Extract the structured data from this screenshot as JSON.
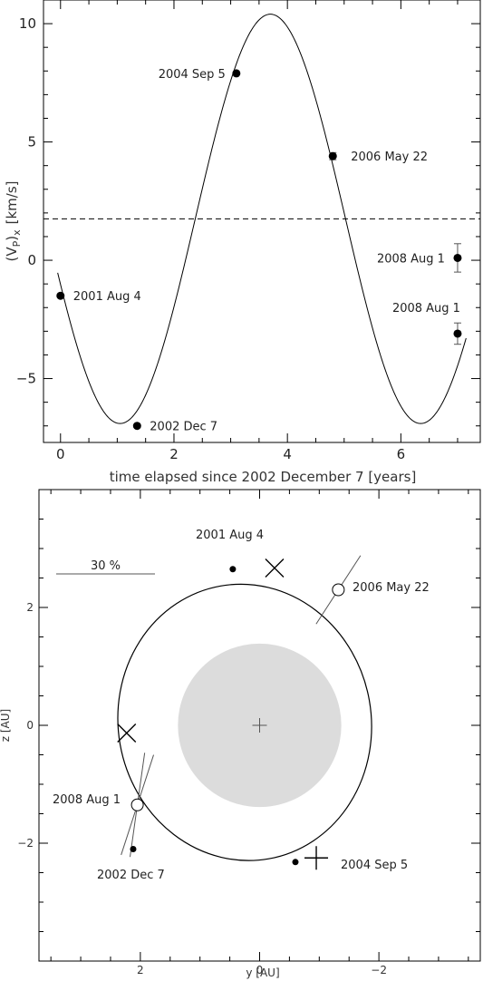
{
  "chart_data": [
    {
      "type": "line",
      "xlabel": "time elapsed since 2002 December 7 [years]",
      "ylabel_main": "(V",
      "ylabel_sub_p": "P",
      "ylabel_mid": ")",
      "ylabel_sub_x": "x",
      "ylabel_unit": "[km/s]",
      "xlim": [
        -0.3,
        7.4
      ],
      "ylim": [
        -7.7,
        11.0
      ],
      "x_ticks": [
        0,
        2,
        4,
        6
      ],
      "y_ticks": [
        -5,
        0,
        5,
        10
      ],
      "x_tick_labels": [
        "0",
        "2",
        "4",
        "6"
      ],
      "y_tick_labels": [
        "−5",
        "0",
        "5",
        "10"
      ],
      "mean_velocity": 1.75,
      "curve": {
        "offset": 1.75,
        "amplitude": 8.65,
        "period_years": 5.3,
        "phase_max_year": 3.7
      },
      "points": [
        {
          "label": "2001 Aug 4",
          "x": 0.0,
          "y": -1.5,
          "err": 0
        },
        {
          "label": "2002 Dec 7",
          "x": 1.35,
          "y": -7.0,
          "err": 0
        },
        {
          "label": "2004 Sep 5",
          "x": 3.1,
          "y": 7.9,
          "err": 0
        },
        {
          "label": "2006 May 22",
          "x": 4.8,
          "y": 4.4,
          "err": 0.15
        },
        {
          "label": "2008 Aug 1",
          "x": 7.0,
          "y": 0.1,
          "err": 0.6
        },
        {
          "label": "2008 Aug 1",
          "x": 7.0,
          "y": -3.1,
          "err": 0.45
        }
      ]
    },
    {
      "type": "scatter",
      "xlabel": "y [AU]",
      "ylabel": "z [AU]",
      "xlim": [
        3.7,
        -3.7
      ],
      "ylim": [
        -4.0,
        4.0
      ],
      "x_ticks": [
        2,
        0,
        -2
      ],
      "y_ticks": [
        -2,
        0,
        2
      ],
      "x_tick_labels": [
        "2",
        "0",
        "−2"
      ],
      "y_tick_labels": [
        "−2",
        "0",
        "2"
      ],
      "scale_bar_label": "30 %",
      "star_disk": {
        "center": [
          0,
          0
        ],
        "radius": 1.37
      },
      "orbit": {
        "center": [
          0.25,
          0.05
        ],
        "semi_axis": 2.35,
        "semi_minor": 2.0,
        "rotation_deg": -10
      },
      "observations": [
        {
          "label": "2001 Aug 4",
          "y": 0.45,
          "z": 2.65
        },
        {
          "label": "2002 Dec 7",
          "y": 2.12,
          "z": -2.1
        },
        {
          "label": "2004 Sep 5",
          "y": -0.6,
          "z": -2.32
        },
        {
          "label": "2006 May 22",
          "y": -1.32,
          "z": 2.3
        },
        {
          "label": "2008 Aug 1",
          "y": 2.05,
          "z": -1.35
        }
      ],
      "crosses": [
        {
          "type": "x",
          "y": -0.25,
          "z": 2.67
        },
        {
          "type": "x",
          "y": 2.23,
          "z": -0.13
        },
        {
          "type": "plus",
          "y": -0.95,
          "z": -2.25
        }
      ],
      "open_circles": [
        {
          "y": -1.32,
          "z": 2.3
        },
        {
          "y": 2.05,
          "z": -1.35
        }
      ]
    }
  ]
}
